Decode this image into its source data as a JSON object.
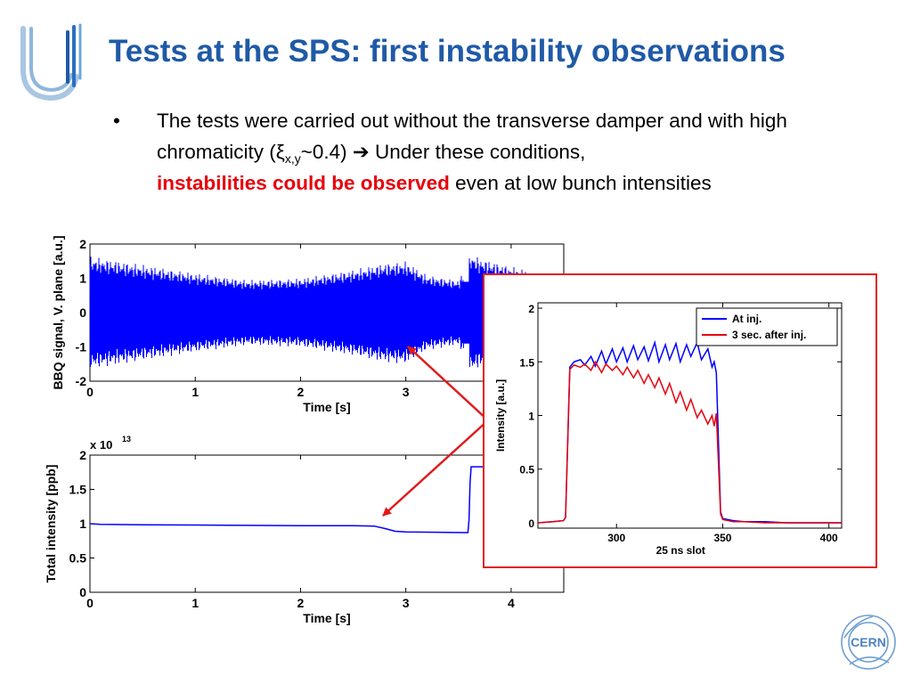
{
  "slide": {
    "title": "Tests at the SPS: first instability observations",
    "bullet": {
      "marker": "•",
      "part1": "The tests were carried out without the transverse damper and with high chromaticity (ξ",
      "sub": "x,y",
      "part2": "~0.4) ",
      "arrow": "➔",
      "part3": " Under these conditions, ",
      "highlight": "instabilities could be observed",
      "part4": " even at low bunch intensities"
    },
    "logo_text": "CERN"
  },
  "colors": {
    "title": "#1f5aa6",
    "highlight": "#e8000b",
    "blue_series": "#0000ff",
    "red_series": "#e8000b",
    "arrow": "#e21b1b"
  },
  "chart_data": [
    {
      "type": "line",
      "id": "bbq",
      "ylabel": "BBQ signal, V. plane [a.u.]",
      "xlabel": "Time [s]",
      "xlim": [
        0,
        4.5
      ],
      "ylim": [
        -2,
        2
      ],
      "xticks": [
        "0",
        "1",
        "2",
        "3",
        "4"
      ],
      "yticks": [
        "2",
        "1",
        "0",
        "-1",
        "-2"
      ],
      "series": [
        {
          "color": "#0000ff",
          "envelope_x": [
            0,
            0.2,
            0.5,
            1.0,
            1.5,
            2.0,
            2.5,
            2.8,
            3.0,
            3.2,
            3.5,
            3.6,
            3.61,
            3.7,
            4.0,
            4.2,
            4.5
          ],
          "envelope_amp": [
            1.65,
            1.55,
            1.4,
            1.15,
            0.95,
            1.0,
            1.25,
            1.45,
            1.5,
            1.1,
            0.95,
            1.5,
            1.75,
            1.6,
            1.35,
            1.2,
            1.15
          ]
        }
      ]
    },
    {
      "type": "line",
      "id": "intensity",
      "ylabel": "Total intensity [ppb]",
      "xlabel": "Time [s]",
      "multiplier": "x 10",
      "multiplier_exp": "13",
      "xlim": [
        0,
        4.5
      ],
      "ylim": [
        0,
        2
      ],
      "xticks": [
        "0",
        "1",
        "2",
        "3",
        "4"
      ],
      "yticks": [
        "2",
        "1.5",
        "1",
        "0.5",
        "0"
      ],
      "series": [
        {
          "color": "#0000ff",
          "x": [
            0,
            0.1,
            0.5,
            1.0,
            1.5,
            2.0,
            2.5,
            2.7,
            2.8,
            2.9,
            3.0,
            3.3,
            3.55,
            3.59,
            3.6,
            3.61,
            3.62,
            4.0,
            4.5
          ],
          "y": [
            1.0,
            0.99,
            0.985,
            0.98,
            0.975,
            0.97,
            0.97,
            0.965,
            0.93,
            0.89,
            0.88,
            0.875,
            0.87,
            0.87,
            1.05,
            1.6,
            1.83,
            1.83,
            1.83
          ]
        }
      ]
    },
    {
      "type": "line",
      "id": "slots",
      "ylabel": "Intensity [a.u.]",
      "xlabel": "25 ns slot",
      "xlim": [
        263,
        406
      ],
      "ylim": [
        -0.05,
        2.05
      ],
      "xticks": [
        "300",
        "350",
        "400"
      ],
      "yticks": [
        "2",
        "1.5",
        "1",
        "0.5",
        "0"
      ],
      "legend_position": "top-right",
      "series": [
        {
          "name": "At inj.",
          "color": "#0000ff",
          "x": [
            263,
            270,
            275,
            276,
            278,
            280,
            283,
            285,
            288,
            290,
            293,
            295,
            298,
            300,
            303,
            305,
            308,
            310,
            313,
            315,
            318,
            320,
            323,
            325,
            328,
            330,
            333,
            335,
            338,
            340,
            343,
            345,
            346,
            347,
            349,
            350,
            355,
            360,
            370,
            380,
            390,
            406
          ],
          "y": [
            0.0,
            0.01,
            0.02,
            0.05,
            1.45,
            1.5,
            1.52,
            1.47,
            1.55,
            1.46,
            1.6,
            1.48,
            1.62,
            1.5,
            1.63,
            1.5,
            1.65,
            1.52,
            1.64,
            1.51,
            1.68,
            1.5,
            1.66,
            1.52,
            1.67,
            1.5,
            1.66,
            1.55,
            1.68,
            1.52,
            1.62,
            1.45,
            1.5,
            1.4,
            0.1,
            0.04,
            0.02,
            0.01,
            0.01,
            0.0,
            0.0,
            0.0
          ]
        },
        {
          "name": "3 sec. after inj.",
          "color": "#e8000b",
          "x": [
            263,
            270,
            275,
            276,
            278,
            280,
            283,
            285,
            288,
            290,
            293,
            295,
            298,
            300,
            303,
            305,
            308,
            310,
            313,
            315,
            318,
            320,
            323,
            325,
            328,
            330,
            333,
            335,
            338,
            340,
            343,
            345,
            346,
            347,
            349,
            350,
            355,
            360,
            370,
            380,
            390,
            406
          ],
          "y": [
            0.0,
            0.01,
            0.02,
            0.05,
            1.43,
            1.47,
            1.45,
            1.48,
            1.42,
            1.5,
            1.4,
            1.48,
            1.42,
            1.46,
            1.38,
            1.45,
            1.35,
            1.42,
            1.3,
            1.38,
            1.26,
            1.35,
            1.2,
            1.3,
            1.12,
            1.22,
            1.05,
            1.15,
            0.98,
            1.05,
            0.92,
            1.0,
            0.9,
            1.02,
            0.08,
            0.03,
            0.01,
            0.01,
            0.0,
            0.0,
            0.0,
            0.0
          ]
        }
      ]
    }
  ]
}
